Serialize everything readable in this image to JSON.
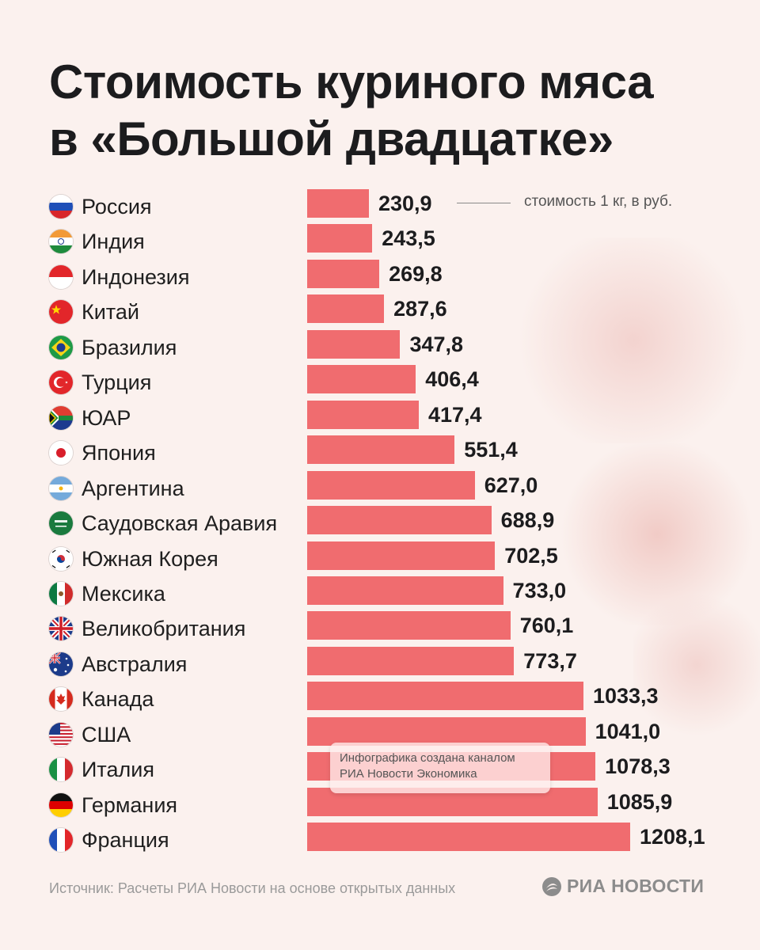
{
  "title": {
    "line1": "Стоимость куриного мяса",
    "line2": "в «Большой двадцатке»"
  },
  "unit_note": "стоимость 1 кг, в руб.",
  "credit": {
    "line1": "Инфографика создана каналом",
    "line2": "РИА Новости Экономика"
  },
  "source": "Источник: Расчеты РИА Новости на основе открытых данных",
  "logo": {
    "text": "РИА НОВОСТИ",
    "icon": "ria-logo-icon"
  },
  "colors": {
    "bar": "#f06c6f",
    "background": "#fbf1ee",
    "text": "#1f1f1f"
  },
  "chart_data": {
    "type": "bar",
    "orientation": "horizontal",
    "title": "Стоимость куриного мяса в «Большой двадцатке»",
    "ylabel": "стоимость 1 кг, в руб.",
    "xlim": [
      0,
      1208.1
    ],
    "categories": [
      "Россия",
      "Индия",
      "Индонезия",
      "Китай",
      "Бразилия",
      "Турция",
      "ЮАР",
      "Япония",
      "Аргентина",
      "Саудовская Аравия",
      "Южная Корея",
      "Мексика",
      "Великобритания",
      "Австралия",
      "Канада",
      "США",
      "Италия",
      "Германия",
      "Франция"
    ],
    "values": [
      230.9,
      243.5,
      269.8,
      287.6,
      347.8,
      406.4,
      417.4,
      551.4,
      627.0,
      688.9,
      702.5,
      733.0,
      760.1,
      773.7,
      1033.3,
      1041.0,
      1078.3,
      1085.9,
      1208.1
    ],
    "value_labels": [
      "230,9",
      "243,5",
      "269,8",
      "287,6",
      "347,8",
      "406,4",
      "417,4",
      "551,4",
      "627,0",
      "688,9",
      "702,5",
      "733,0",
      "760,1",
      "773,7",
      "1033,3",
      "1041,0",
      "1078,3",
      "1085,9",
      "1208,1"
    ],
    "flags": [
      "russia",
      "india",
      "indonesia",
      "china",
      "brazil",
      "turkey",
      "south-africa",
      "japan",
      "argentina",
      "saudi-arabia",
      "south-korea",
      "mexico",
      "uk",
      "australia",
      "canada",
      "usa",
      "italy",
      "germany",
      "france"
    ]
  }
}
